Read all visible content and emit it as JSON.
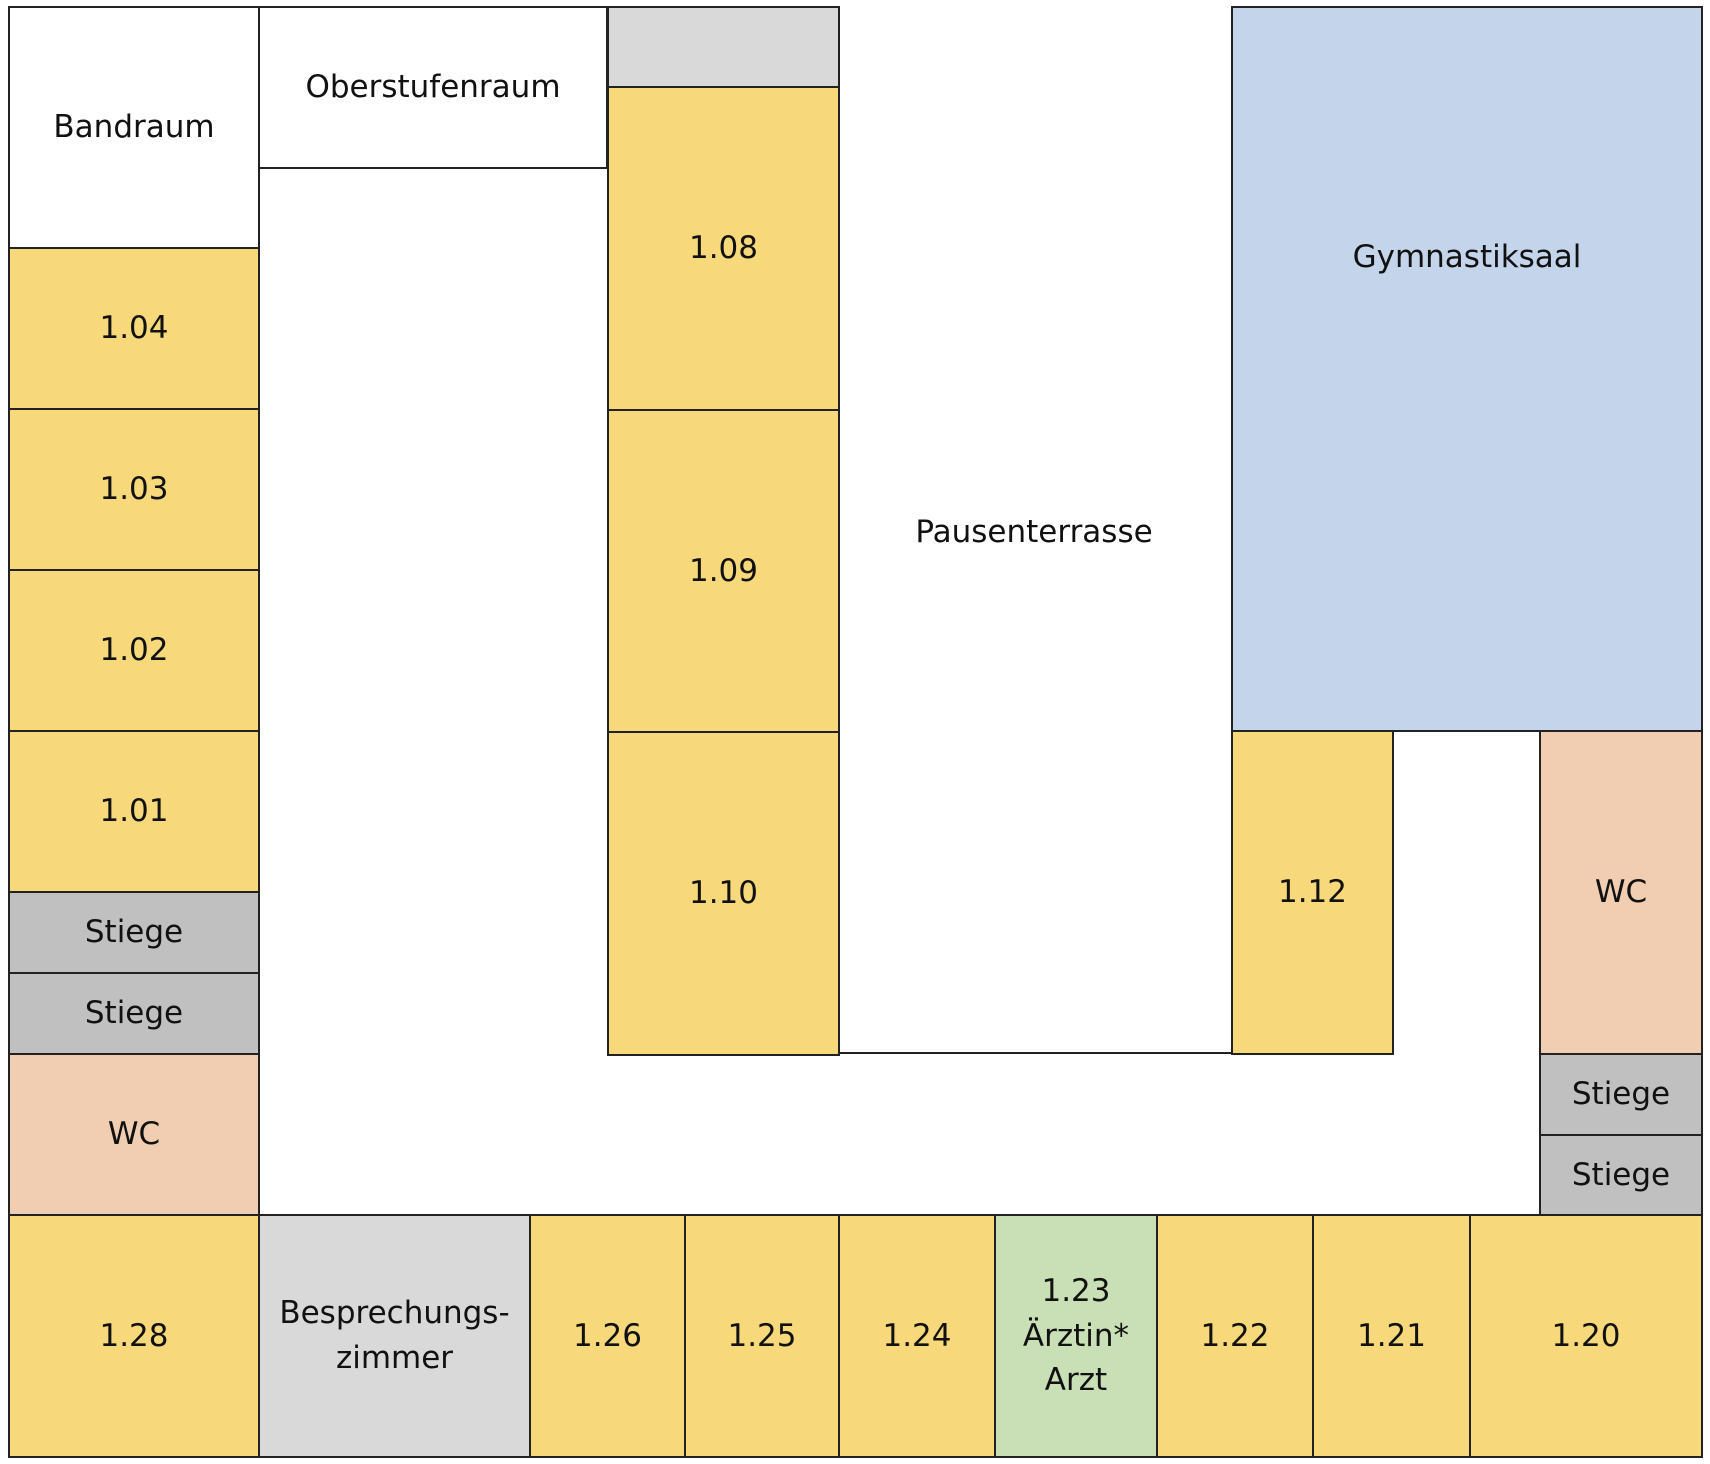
{
  "colors": {
    "classroom": "#f7d97c",
    "stairs": "#c0c0c0",
    "wc": "#f1ceb1",
    "gym": "#c4d4ea",
    "meeting": "#d9d9d9",
    "doctor": "#c9dfb6",
    "plain": "#ffffff",
    "wall": "#222222"
  },
  "labels": {
    "bandraum": "Bandraum",
    "oberstufenraum": "Oberstufenraum",
    "r104": "1.04",
    "r103": "1.03",
    "r102": "1.02",
    "r101": "1.01",
    "stiege_left_1": "Stiege",
    "stiege_left_2": "Stiege",
    "wc_left": "WC",
    "r108": "1.08",
    "r109": "1.09",
    "r110": "1.10",
    "pausenterrasse": "Pausenterrasse",
    "gymnastiksaal": "Gymnastiksaal",
    "r112": "1.12",
    "wc_right": "WC",
    "stiege_right_1": "Stiege",
    "stiege_right_2": "Stiege",
    "r128": "1.28",
    "besprechungszimmer": "Besprechungs-\nzimmer",
    "r126": "1.26",
    "r125": "1.25",
    "r124": "1.24",
    "r123": "1.23\nÄrztin*\nArzt",
    "r122": "1.22",
    "r121": "1.21",
    "r120": "1.20"
  }
}
